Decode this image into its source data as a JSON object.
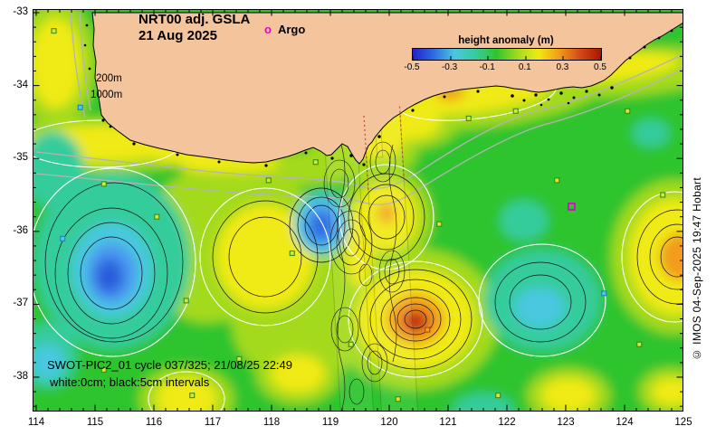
{
  "figure": {
    "title": "NRT00 adj. GSLA",
    "date": "21 Aug 2025",
    "legend": {
      "symbol": "o",
      "label": "Argo"
    },
    "bathymetry_labels": {
      "l200": "200m",
      "l1000": "1000m"
    },
    "annotation_line1": "SWOT-PIC2_01 cycle 037/325; 21/08/25 22:49",
    "annotation_line2": "white:0cm; black:5cm intervals",
    "credit": "© IMOS 04-Sep-2025 19:47 Hobart"
  },
  "colorbar": {
    "title": "height anomaly (m)",
    "min": -0.5,
    "max": 0.5,
    "ticks": [
      -0.5,
      -0.3,
      -0.1,
      0.1,
      0.3,
      0.5
    ],
    "tick_labels": [
      "-0.5",
      "-0.3",
      "-0.1",
      "0.1",
      "0.3",
      "0.5"
    ],
    "stops": [
      "#2222cc",
      "#2f6ce0",
      "#49c8e0",
      "#35cc9c",
      "#2fc42f",
      "#a4da1e",
      "#f0ea12",
      "#f29c1a",
      "#d4491a",
      "#a81600"
    ]
  },
  "axes": {
    "x": {
      "min": 114,
      "max": 125,
      "major_ticks": [
        114,
        115,
        116,
        117,
        118,
        119,
        120,
        121,
        122,
        123,
        124,
        125
      ],
      "tick_labels": [
        "114",
        "115",
        "116",
        "117",
        "118",
        "119",
        "120",
        "121",
        "122",
        "123",
        "124",
        "125"
      ],
      "minor_step": 0.2
    },
    "y": {
      "min": -38.5,
      "max": -33,
      "major_ticks": [
        -33,
        -34,
        -35,
        -36,
        -37,
        -38
      ],
      "tick_labels": [
        "-33",
        "-34",
        "-35",
        "-36",
        "-37",
        "-38"
      ],
      "minor_step": 0.2
    }
  },
  "palette": {
    "green": "#2fc42f",
    "yellow_green": "#a4da1e",
    "yellow": "#f0ea12",
    "orange": "#f29c1a",
    "red_orange": "#d4491a",
    "dark_red": "#a81600",
    "teal": "#35cc9c",
    "cyan": "#49c8e0",
    "light_blue": "#4b9bf0",
    "blue": "#2f6ce0",
    "deep_blue": "#2a52d8",
    "land": "#f4c49c",
    "bathy": "#b4b4b4",
    "magenta": "#e800d0"
  },
  "argo_floats": [
    {
      "lon": 114.3,
      "lat": -33.25,
      "fill": "#dde431",
      "stroke": "#2f8f1f"
    },
    {
      "lon": 114.75,
      "lat": -34.3,
      "fill": "#48cce0",
      "stroke": "#1f7fbf"
    },
    {
      "lon": 115.15,
      "lat": -35.35,
      "fill": "#dde431",
      "stroke": "#2f8f1f"
    },
    {
      "lon": 114.45,
      "lat": -36.1,
      "fill": "#48cce0",
      "stroke": "#1f7fbf"
    },
    {
      "lon": 116.05,
      "lat": -35.8,
      "fill": "#dde431",
      "stroke": "#2f8f1f"
    },
    {
      "lon": 116.55,
      "lat": -36.95,
      "fill": "#dde431",
      "stroke": "#2f8f1f"
    },
    {
      "lon": 115.15,
      "lat": -37.9,
      "fill": "#dde431",
      "stroke": "#2f8f1f"
    },
    {
      "lon": 116.65,
      "lat": -38.25,
      "fill": "#dde431",
      "stroke": "#2f8f1f"
    },
    {
      "lon": 117.45,
      "lat": -37.75,
      "fill": "#dde431",
      "stroke": "#2f8f1f"
    },
    {
      "lon": 117.95,
      "lat": -35.3,
      "fill": "#dde431",
      "stroke": "#2f8f1f"
    },
    {
      "lon": 118.75,
      "lat": -35.05,
      "fill": "#dde431",
      "stroke": "#2f8f1f"
    },
    {
      "lon": 118.35,
      "lat": -36.3,
      "fill": "#dde431",
      "stroke": "#2f8f1f"
    },
    {
      "lon": 119.35,
      "lat": -37.55,
      "fill": "#dde431",
      "stroke": "#2f8f1f"
    },
    {
      "lon": 120.65,
      "lat": -37.35,
      "fill": "#f0a020",
      "stroke": "#a84c10"
    },
    {
      "lon": 120.85,
      "lat": -35.9,
      "fill": "#dde431",
      "stroke": "#2f8f1f"
    },
    {
      "lon": 121.35,
      "lat": -34.45,
      "fill": "#dde431",
      "stroke": "#2f8f1f"
    },
    {
      "lon": 122.15,
      "lat": -34.35,
      "fill": "#dde431",
      "stroke": "#2f8f1f"
    },
    {
      "lon": 122.85,
      "lat": -35.3,
      "fill": "#dde431",
      "stroke": "#2f8f1f"
    },
    {
      "lon": 123.65,
      "lat": -36.85,
      "fill": "#48cce0",
      "stroke": "#1f7fbf"
    },
    {
      "lon": 124.25,
      "lat": -37.55,
      "fill": "#dde431",
      "stroke": "#2f8f1f"
    },
    {
      "lon": 121.85,
      "lat": -38.25,
      "fill": "#dde431",
      "stroke": "#2f8f1f"
    },
    {
      "lon": 124.05,
      "lat": -34.35,
      "fill": "#dde431",
      "stroke": "#2f8f1f"
    },
    {
      "lon": 124.65,
      "lat": -35.5,
      "fill": "#dde431",
      "stroke": "#2f8f1f"
    },
    {
      "lon": 120.15,
      "lat": -38.3,
      "fill": "#dde431",
      "stroke": "#2f8f1f"
    },
    {
      "lon": 123.1,
      "lat": -35.66,
      "stroke": "#e800d0",
      "open": true
    }
  ],
  "chart_data": {
    "type": "heatmap",
    "title": "NRT00 adj. GSLA 21 Aug 2025 - sea surface height anomaly (m)",
    "x_range": [
      114,
      125
    ],
    "y_range": [
      -38.5,
      -33
    ],
    "value_range": [
      -0.5,
      0.5
    ],
    "contour_intervals": {
      "white_cm": 0,
      "black_cm": 5
    },
    "features": [
      {
        "type": "low",
        "lon": 115.3,
        "lat": -36.6,
        "anomaly_m": -0.25
      },
      {
        "type": "low",
        "lon": 118.85,
        "lat": -35.9,
        "anomaly_m": -0.2
      },
      {
        "type": "high",
        "lon": 119.95,
        "lat": -35.8,
        "anomaly_m": 0.15
      },
      {
        "type": "high",
        "lon": 120.45,
        "lat": -37.2,
        "anomaly_m": 0.45
      },
      {
        "type": "low",
        "lon": 122.55,
        "lat": -37.0,
        "anomaly_m": -0.15
      },
      {
        "type": "high",
        "lon": 124.95,
        "lat": -36.35,
        "anomaly_m": 0.3
      },
      {
        "type": "high_band_coastal",
        "lon": 121.5,
        "lat": -34.15,
        "anomaly_m": 0.15
      }
    ]
  }
}
